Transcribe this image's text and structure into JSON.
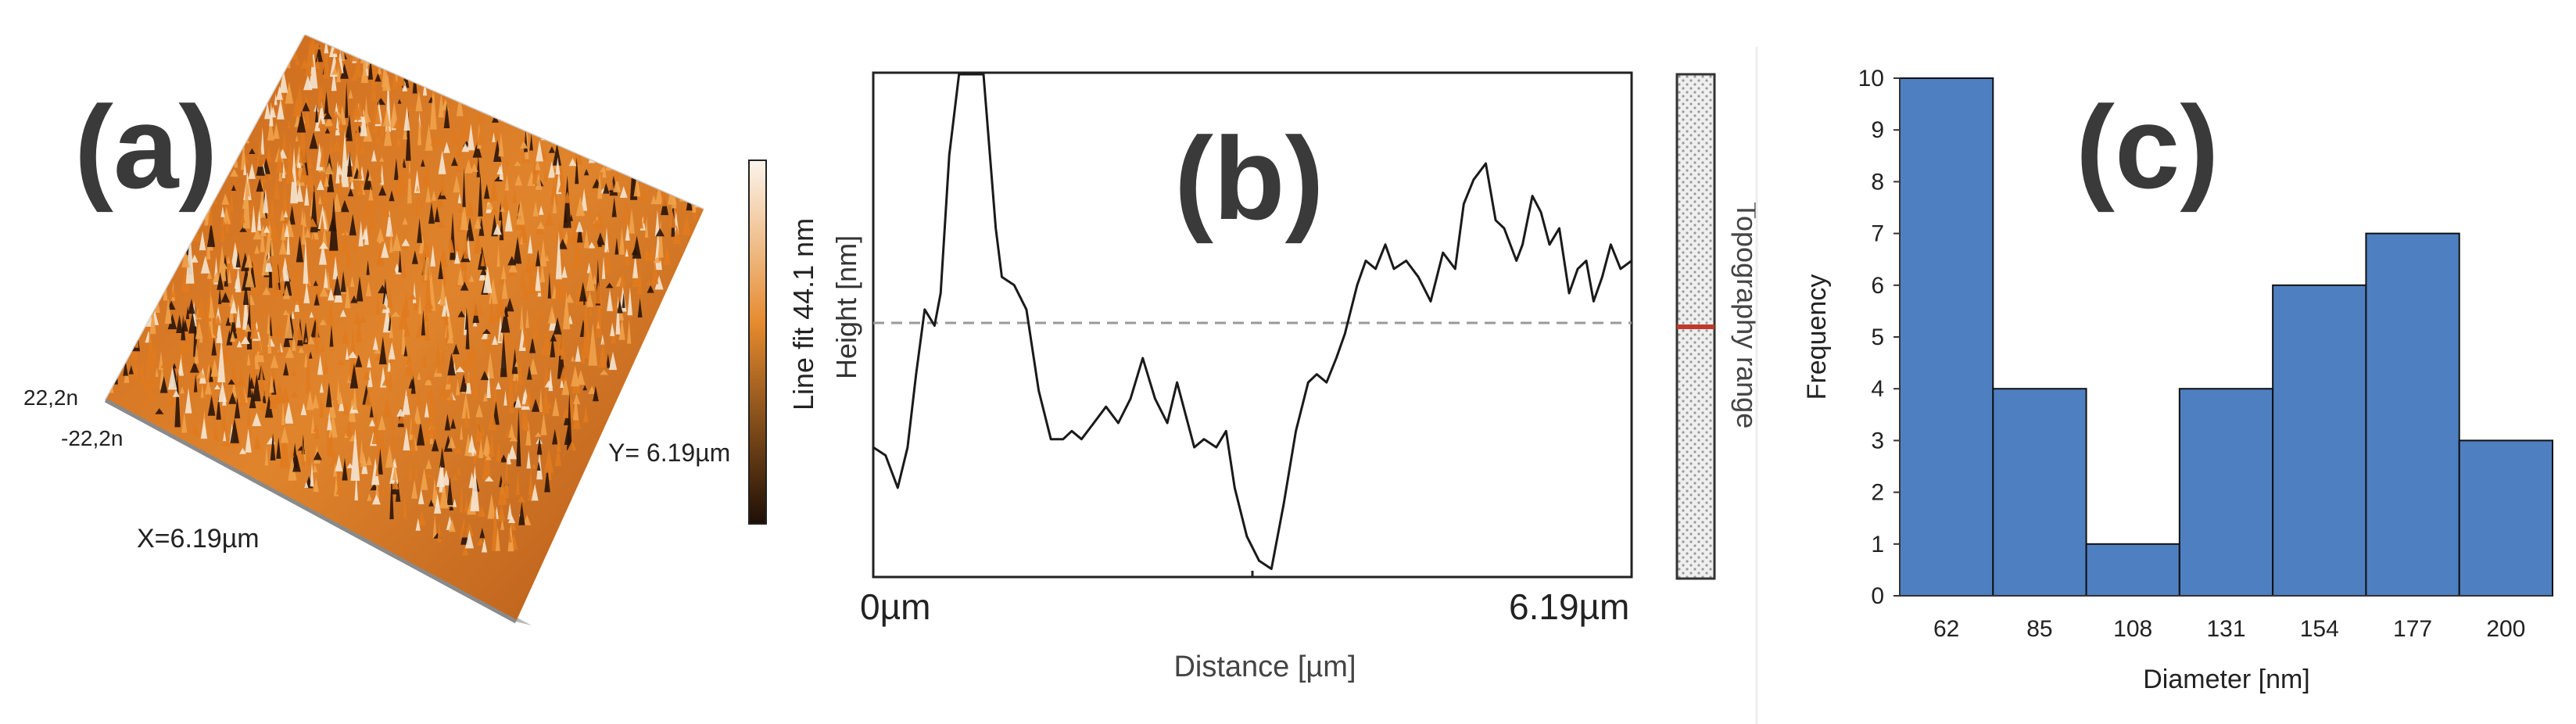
{
  "panels": {
    "a": {
      "letter": "(a)",
      "z_top_label": "22,2n",
      "z_bottom_label": "-22,2n",
      "x_label": "X=6.19µm",
      "y_label": "Y= 6.19µm",
      "colorbar_label": "Line fit 44.1 nm",
      "colors": {
        "light": "#f4e6d2",
        "mid": "#e07a1e",
        "dark": "#2a1408"
      }
    },
    "b": {
      "letter": "(b)",
      "y_axis_label": "Height [nm]",
      "x_axis_label": "Distance [µm]",
      "x_tick_start": "0µm",
      "x_tick_end": "6.19µm",
      "range_bar_label": "Topography range"
    },
    "c": {
      "letter": "(c)"
    }
  },
  "chart_data": [
    {
      "type": "line",
      "panel": "b",
      "xlabel": "Distance [µm]",
      "ylabel": "Height [nm]",
      "x_range": [
        0,
        6.19
      ],
      "reference_line": "dashed",
      "x": [
        0.0,
        0.1,
        0.2,
        0.28,
        0.35,
        0.42,
        0.5,
        0.55,
        0.62,
        0.7,
        0.75,
        0.82,
        0.9,
        1.0,
        1.05,
        1.15,
        1.25,
        1.35,
        1.45,
        1.55,
        1.62,
        1.7,
        1.8,
        1.9,
        2.0,
        2.1,
        2.2,
        2.3,
        2.4,
        2.48,
        2.55,
        2.62,
        2.7,
        2.8,
        2.88,
        2.95,
        3.05,
        3.15,
        3.25,
        3.35,
        3.45,
        3.55,
        3.62,
        3.7,
        3.78,
        3.85,
        3.95,
        4.02,
        4.1,
        4.18,
        4.25,
        4.35,
        4.45,
        4.55,
        4.65,
        4.75,
        4.82,
        4.9,
        5.0,
        5.08,
        5.15,
        5.25,
        5.3,
        5.38,
        5.45,
        5.52,
        5.6,
        5.68,
        5.75,
        5.82,
        5.88,
        5.95,
        6.02,
        6.1,
        6.19
      ],
      "y": [
        -14,
        -15,
        -19,
        -14,
        -5,
        3,
        1,
        5,
        22,
        32,
        32,
        32,
        32,
        13,
        7,
        6,
        3,
        -7,
        -13,
        -13,
        -12,
        -13,
        -11,
        -9,
        -11,
        -8,
        -3,
        -8,
        -11,
        -6,
        -10,
        -14,
        -13,
        -14,
        -12,
        -19,
        -25,
        -28,
        -29,
        -21,
        -12,
        -6,
        -5,
        -6,
        -3,
        0,
        6,
        9,
        8,
        11,
        8,
        9,
        7,
        4,
        10,
        8,
        16,
        19,
        21,
        14,
        13,
        9,
        11,
        17,
        15,
        11,
        13,
        5,
        8,
        9,
        4,
        7,
        11,
        8,
        9
      ],
      "y_range": [
        -30,
        32
      ]
    },
    {
      "type": "bar",
      "panel": "c",
      "xlabel": "Diameter [nm]",
      "ylabel": "Frequency",
      "categories": [
        "62",
        "85",
        "108",
        "131",
        "154",
        "177",
        "200"
      ],
      "values": [
        10,
        4,
        1,
        4,
        6,
        7,
        3
      ],
      "ylim": [
        0,
        10
      ],
      "yticks": [
        "0",
        "1",
        "2",
        "3",
        "4",
        "5",
        "6",
        "7",
        "8",
        "9",
        "10"
      ],
      "bar_color": "#4e7fc1"
    }
  ]
}
